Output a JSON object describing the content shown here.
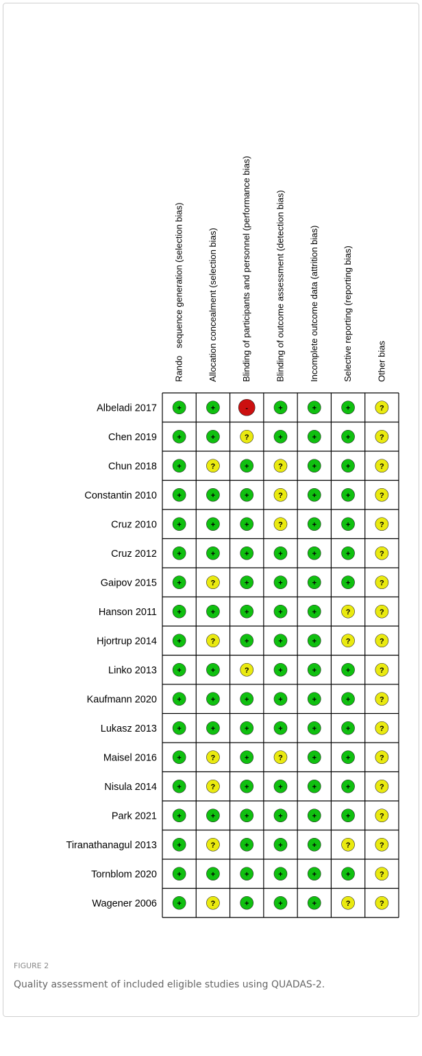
{
  "columns": [
    "Rando   sequence generation (selection bias)",
    "Allocation concealment (selection bias)",
    "Blinding of participants and personnel (performance bias)",
    "Blinding of outcome assessment (detection bias)",
    "Incomplete outcome data (attrition bias)",
    "Selective reporting (reporting bias)",
    "Other bias"
  ],
  "rows": [
    {
      "name": "Albeladi 2017",
      "judgments": [
        "+",
        "+",
        "-",
        "+",
        "+",
        "+",
        "?"
      ]
    },
    {
      "name": "Chen 2019",
      "judgments": [
        "+",
        "+",
        "?",
        "+",
        "+",
        "+",
        "?"
      ]
    },
    {
      "name": "Chun 2018",
      "judgments": [
        "+",
        "?",
        "+",
        "?",
        "+",
        "+",
        "?"
      ]
    },
    {
      "name": "Constantin 2010",
      "judgments": [
        "+",
        "+",
        "+",
        "?",
        "+",
        "+",
        "?"
      ]
    },
    {
      "name": "Cruz 2010",
      "judgments": [
        "+",
        "+",
        "+",
        "?",
        "+",
        "+",
        "?"
      ]
    },
    {
      "name": "Cruz 2012",
      "judgments": [
        "+",
        "+",
        "+",
        "+",
        "+",
        "+",
        "?"
      ]
    },
    {
      "name": "Gaipov 2015",
      "judgments": [
        "+",
        "?",
        "+",
        "+",
        "+",
        "+",
        "?"
      ]
    },
    {
      "name": "Hanson 2011",
      "judgments": [
        "+",
        "+",
        "+",
        "+",
        "+",
        "?",
        "?"
      ]
    },
    {
      "name": "Hjortrup 2014",
      "judgments": [
        "+",
        "?",
        "+",
        "+",
        "+",
        "?",
        "?"
      ]
    },
    {
      "name": "Linko 2013",
      "judgments": [
        "+",
        "+",
        "?",
        "+",
        "+",
        "+",
        "?"
      ]
    },
    {
      "name": "Kaufmann 2020",
      "judgments": [
        "+",
        "+",
        "+",
        "+",
        "+",
        "+",
        "?"
      ]
    },
    {
      "name": "Lukasz 2013",
      "judgments": [
        "+",
        "+",
        "+",
        "+",
        "+",
        "+",
        "?"
      ]
    },
    {
      "name": "Maisel 2016",
      "judgments": [
        "+",
        "?",
        "+",
        "?",
        "+",
        "+",
        "?"
      ]
    },
    {
      "name": "Nisula 2014",
      "judgments": [
        "+",
        "?",
        "+",
        "+",
        "+",
        "+",
        "?"
      ]
    },
    {
      "name": "Park 2021",
      "judgments": [
        "+",
        "+",
        "+",
        "+",
        "+",
        "+",
        "?"
      ]
    },
    {
      "name": "Tiranathanagul 2013",
      "judgments": [
        "+",
        "?",
        "+",
        "+",
        "+",
        "?",
        "?"
      ]
    },
    {
      "name": "Tornblom 2020",
      "judgments": [
        "+",
        "+",
        "+",
        "+",
        "+",
        "+",
        "?"
      ]
    },
    {
      "name": "Wagener 2006",
      "judgments": [
        "+",
        "?",
        "+",
        "+",
        "+",
        "?",
        "?"
      ]
    }
  ],
  "colors": {
    "+": "#10c010",
    "?": "#eaea10",
    "-": "#cc1010"
  },
  "caption": {
    "label": "FIGURE 2",
    "text": "Quality assessment of included eligible studies using QUADAS-2."
  }
}
